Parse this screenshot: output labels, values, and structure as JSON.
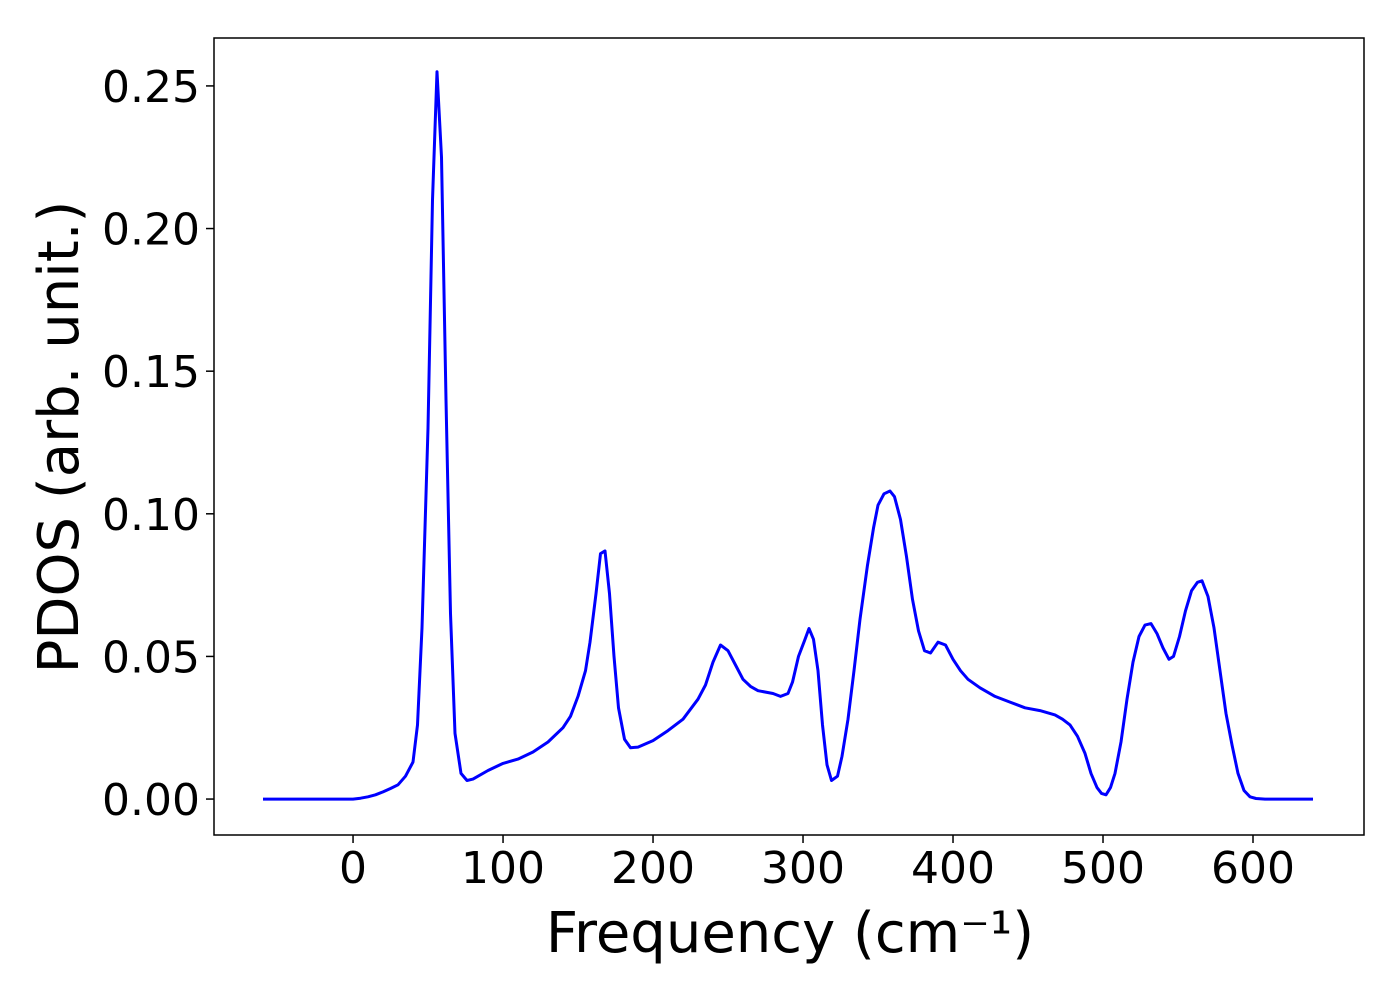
{
  "chart_data": {
    "type": "line",
    "xlabel": "Frequency (cm⁻¹)",
    "ylabel": "PDOS (arb. unit.)",
    "x": [
      -60,
      -40,
      -20,
      0,
      5,
      10,
      15,
      20,
      25,
      30,
      35,
      40,
      43,
      46,
      50,
      53,
      56,
      59,
      62,
      65,
      68,
      72,
      76,
      80,
      90,
      100,
      110,
      120,
      130,
      140,
      145,
      150,
      155,
      158,
      162,
      165,
      168,
      171,
      174,
      177,
      181,
      185,
      190,
      200,
      210,
      220,
      230,
      235,
      240,
      245,
      250,
      255,
      260,
      265,
      270,
      280,
      285,
      290,
      293,
      297,
      301,
      304,
      307,
      310,
      313,
      316,
      319,
      323,
      326,
      330,
      334,
      338,
      343,
      347,
      350,
      354,
      358,
      361,
      365,
      369,
      373,
      377,
      381,
      385,
      390,
      395,
      400,
      405,
      410,
      418,
      428,
      438,
      448,
      458,
      468,
      473,
      478,
      483,
      488,
      492,
      496,
      499,
      502,
      505,
      508,
      512,
      516,
      520,
      524,
      528,
      532,
      536,
      540,
      544,
      547,
      551,
      555,
      559,
      563,
      566,
      570,
      574,
      578,
      582,
      586,
      590,
      594,
      598,
      602,
      608,
      620,
      640
    ],
    "series": [
      {
        "name": "PDOS",
        "color": "#0000ff",
        "values": [
          0,
          0,
          0,
          0,
          0.0003,
          0.0008,
          0.0015,
          0.0025,
          0.0037,
          0.005,
          0.008,
          0.013,
          0.026,
          0.06,
          0.13,
          0.21,
          0.255,
          0.225,
          0.14,
          0.065,
          0.023,
          0.009,
          0.0065,
          0.007,
          0.01,
          0.0125,
          0.014,
          0.0165,
          0.02,
          0.025,
          0.029,
          0.036,
          0.045,
          0.055,
          0.072,
          0.086,
          0.087,
          0.072,
          0.05,
          0.032,
          0.021,
          0.018,
          0.0182,
          0.0205,
          0.024,
          0.028,
          0.035,
          0.04,
          0.048,
          0.054,
          0.052,
          0.047,
          0.042,
          0.0395,
          0.038,
          0.037,
          0.036,
          0.037,
          0.041,
          0.05,
          0.0555,
          0.0598,
          0.056,
          0.045,
          0.026,
          0.012,
          0.0065,
          0.008,
          0.015,
          0.028,
          0.045,
          0.063,
          0.082,
          0.095,
          0.103,
          0.107,
          0.108,
          0.106,
          0.098,
          0.085,
          0.07,
          0.059,
          0.052,
          0.0512,
          0.055,
          0.054,
          0.049,
          0.045,
          0.042,
          0.039,
          0.036,
          0.034,
          0.032,
          0.031,
          0.0295,
          0.028,
          0.026,
          0.022,
          0.016,
          0.009,
          0.004,
          0.002,
          0.0015,
          0.004,
          0.009,
          0.02,
          0.035,
          0.048,
          0.057,
          0.061,
          0.0615,
          0.058,
          0.053,
          0.049,
          0.05,
          0.057,
          0.066,
          0.073,
          0.076,
          0.0765,
          0.071,
          0.06,
          0.045,
          0.03,
          0.019,
          0.009,
          0.003,
          0.0008,
          0.0002,
          0,
          0,
          0
        ]
      }
    ],
    "xlim": [
      -92.7,
      674
    ],
    "ylim": [
      -0.0126,
      0.2668
    ],
    "xticks": [
      0,
      100,
      200,
      300,
      400,
      500,
      600
    ],
    "yticks": [
      {
        "value": 0,
        "label": "0.00"
      },
      {
        "value": 0.05,
        "label": "0.05"
      },
      {
        "value": 0.1,
        "label": "0.10"
      },
      {
        "value": 0.15,
        "label": "0.15"
      },
      {
        "value": 0.2,
        "label": "0.20"
      },
      {
        "value": 0.25,
        "label": "0.25"
      }
    ]
  }
}
